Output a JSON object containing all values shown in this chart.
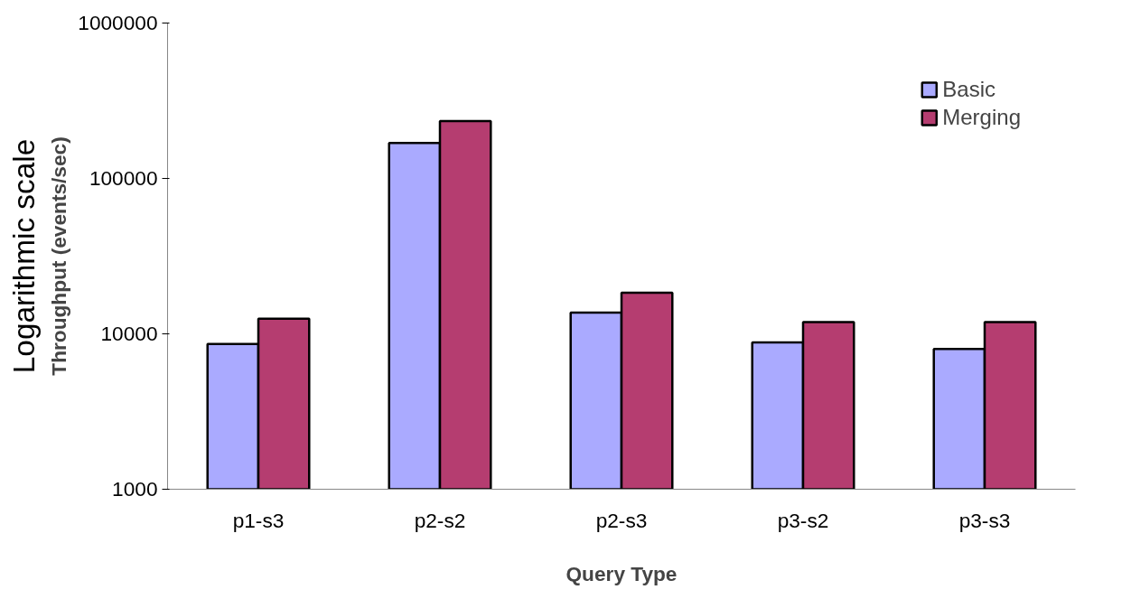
{
  "chart_data": {
    "type": "bar",
    "xlabel": "Query Type",
    "ylabel": "Throughput (events/sec)",
    "annotations": [
      "Logarithmic scale"
    ],
    "categories": [
      "p1-s3",
      "p2-s2",
      "p2-s3",
      "p3-s2",
      "p3-s3"
    ],
    "series": [
      {
        "name": "Basic",
        "color": "#aaaaff",
        "values": [
          8600,
          169000,
          13700,
          8800,
          8000
        ]
      },
      {
        "name": "Merging",
        "color": "#b53d70",
        "values": [
          12500,
          234000,
          18400,
          11900,
          11900
        ]
      }
    ],
    "log": true,
    "ylim": [
      1000,
      1000000
    ],
    "yticks": [
      1000,
      10000,
      100000,
      1000000
    ],
    "grid": false,
    "legend": "top right"
  }
}
